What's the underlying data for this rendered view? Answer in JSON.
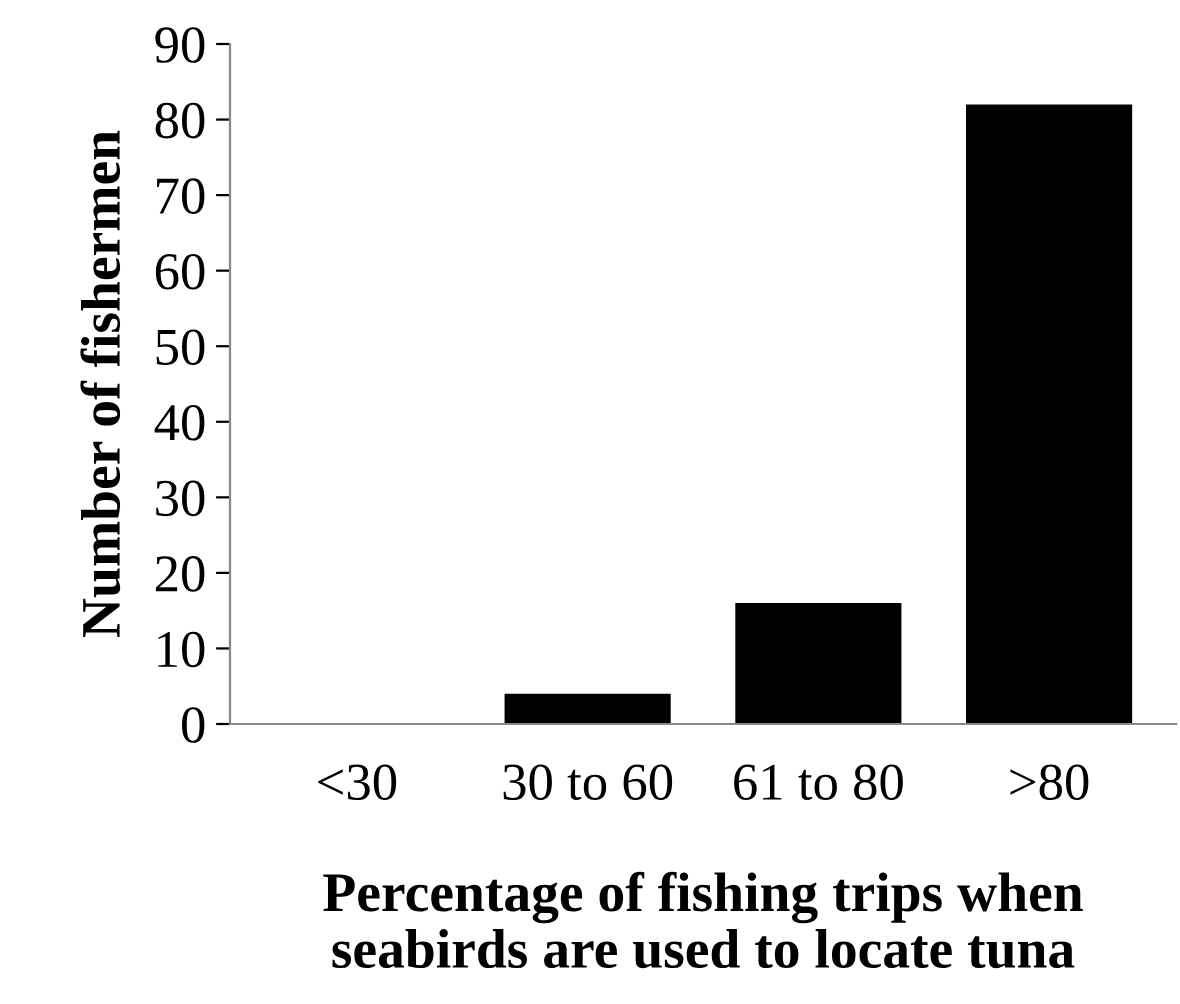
{
  "chart_data": {
    "type": "bar",
    "categories": [
      "<30",
      "30 to 60",
      "61 to 80",
      ">80"
    ],
    "values": [
      0,
      4,
      16,
      82
    ],
    "color": "#000000",
    "xlabel": "Percentage of fishing trips when\nseabirds are used to locate tuna",
    "ylabel": "Number of fishermen",
    "ylim": [
      0,
      90
    ],
    "yticks": [
      0,
      10,
      20,
      30,
      40,
      50,
      60,
      70,
      80,
      90
    ],
    "grid": false,
    "legend": false
  }
}
